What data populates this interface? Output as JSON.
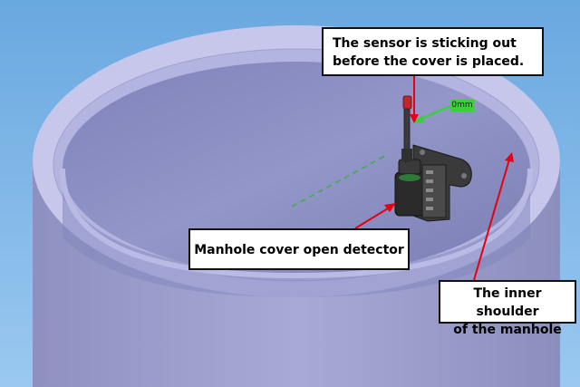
{
  "diagram": {
    "callouts": [
      {
        "id": "sensor",
        "lines": [
          "The sensor is sticking out",
          "before the cover is placed."
        ]
      },
      {
        "id": "detector",
        "lines": [
          "Manhole cover open detector"
        ]
      },
      {
        "id": "shoulder",
        "lines": [
          "The inner shoulder",
          "of the manhole"
        ]
      }
    ],
    "dimension_label": "0mm"
  },
  "colors": {
    "sky": "#7fb6e6",
    "manhole_body": "#9a9cc8",
    "manhole_rim": "#c9c9ec",
    "manhole_interior": "#8a8cc2",
    "detector": "#2a2a2a",
    "callout_arrow": "#e60012",
    "dimension": "#3ccf3c"
  }
}
